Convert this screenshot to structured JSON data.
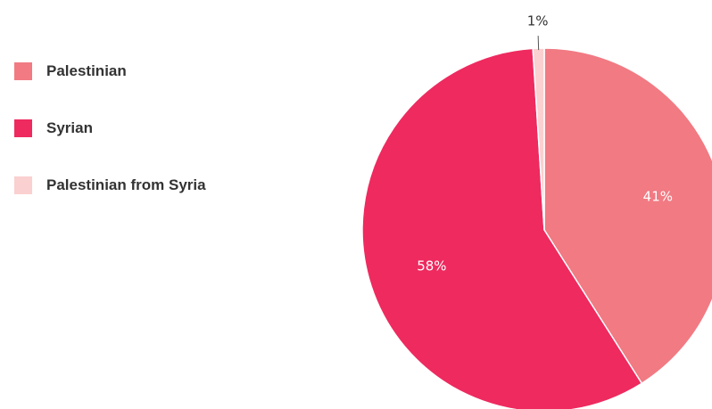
{
  "chart_data": {
    "type": "pie",
    "title": "",
    "series": [
      {
        "name": "Palestinian",
        "value": 41,
        "label": "41%",
        "color": "#f17a83"
      },
      {
        "name": "Syrian",
        "value": 58,
        "label": "58%",
        "color": "#ee2a5f"
      },
      {
        "name": "Palestinian from Syria",
        "value": 1,
        "label": "1%",
        "color": "#fbd0d0"
      }
    ],
    "legend_position": "left",
    "start": "top, clockwise"
  }
}
